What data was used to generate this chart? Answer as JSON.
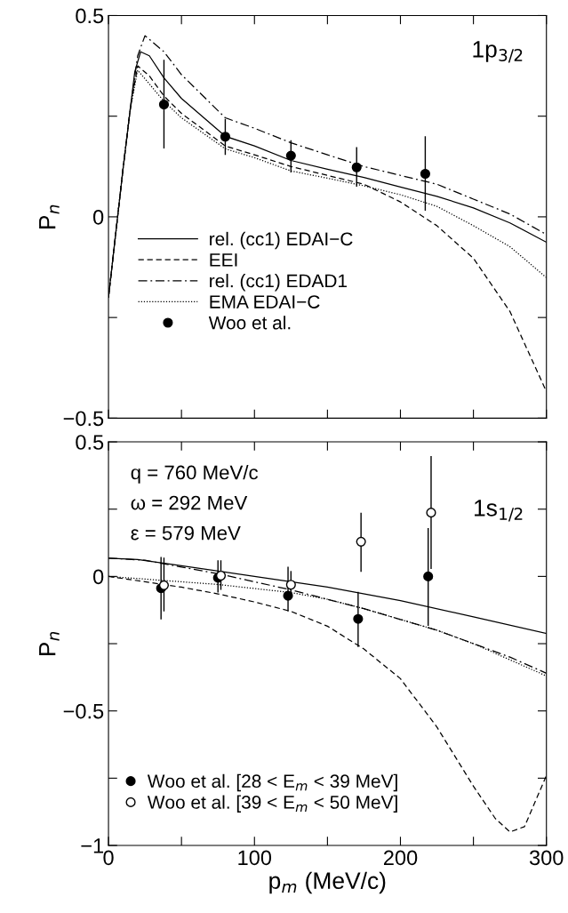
{
  "chart_data": [
    {
      "type": "line",
      "ylabel": "P$_{n}$",
      "xlim": [
        0,
        300
      ],
      "ylim": [
        -0.5,
        0.5
      ],
      "xticks": [
        0,
        {
          "value": 50,
          "label": null
        },
        100,
        {
          "value": 150,
          "label": null
        },
        200,
        {
          "value": 250,
          "label": null
        },
        300
      ],
      "yticks": [
        {
          "value": -0.5,
          "label": "−0.5"
        },
        {
          "value": -0.25,
          "label": null
        },
        0,
        {
          "value": 0.25,
          "label": null
        },
        0.5
      ],
      "tick_labels": "y",
      "grid": false,
      "legend": "bottom left",
      "annotations": [
        {
          "text": "1p$_{3/2}$"
        }
      ],
      "series": [
        {
          "name": "rel. (cc1) EDAI−C",
          "line_style": "solid",
          "color": "#000000",
          "x": [
            0,
            5,
            10,
            15,
            18,
            22,
            28,
            38,
            50,
            80,
            100,
            125,
            150,
            175,
            200,
            225,
            250,
            275,
            300
          ],
          "values": [
            -0.2,
            -0.04,
            0.12,
            0.27,
            0.36,
            0.41,
            0.4,
            0.345,
            0.294,
            0.2,
            0.176,
            0.14,
            0.118,
            0.098,
            0.074,
            0.051,
            0.022,
            -0.015,
            -0.063
          ]
        },
        {
          "name": "EEI",
          "line_style": "dashed",
          "color": "#000000",
          "x": [
            0,
            5,
            10,
            15,
            20,
            28,
            38,
            50,
            80,
            100,
            125,
            150,
            175,
            200,
            225,
            250,
            275,
            300
          ],
          "values": [
            -0.2,
            -0.04,
            0.12,
            0.27,
            0.375,
            0.35,
            0.3,
            0.257,
            0.176,
            0.154,
            0.125,
            0.103,
            0.081,
            0.037,
            -0.022,
            -0.103,
            -0.235,
            -0.434
          ]
        },
        {
          "name": "rel. (cc1) EDAD1",
          "line_style": "dashdot",
          "color": "#000000",
          "x": [
            0,
            5,
            10,
            15,
            20,
            25,
            38,
            50,
            80,
            100,
            125,
            150,
            175,
            200,
            225,
            250,
            275,
            300
          ],
          "values": [
            -0.2,
            -0.04,
            0.12,
            0.27,
            0.4,
            0.45,
            0.41,
            0.353,
            0.246,
            0.22,
            0.184,
            0.154,
            0.125,
            0.103,
            0.081,
            0.044,
            0.007,
            -0.044
          ]
        },
        {
          "name": "EMA EDAI−C",
          "line_style": "dotted",
          "color": "#000000",
          "x": [
            0,
            5,
            10,
            15,
            20,
            28,
            38,
            50,
            80,
            100,
            125,
            150,
            175,
            200,
            225,
            250,
            275,
            300
          ],
          "values": [
            -0.2,
            -0.04,
            0.12,
            0.27,
            0.364,
            0.33,
            0.287,
            0.246,
            0.169,
            0.147,
            0.114,
            0.096,
            0.077,
            0.055,
            0.026,
            -0.022,
            -0.074,
            -0.151
          ]
        },
        {
          "name": "Woo et al.",
          "type": "scatter",
          "marker": "circle",
          "color": "#000000",
          "x": [
            38,
            80,
            125,
            170,
            217
          ],
          "values": [
            0.279,
            0.199,
            0.152,
            0.123,
            0.107
          ],
          "errors": [
            [
              0.17,
              0.39
            ],
            [
              0.154,
              0.243
            ],
            [
              0.11,
              0.19
            ],
            [
              0.075,
              0.173
            ],
            [
              0.015,
              0.2
            ]
          ]
        }
      ]
    },
    {
      "type": "line",
      "ylabel": "P$_{n}$",
      "xlabel": "p$_{m}$ (MeV/c)",
      "xlim": [
        0,
        300
      ],
      "ylim": [
        -1,
        0.5
      ],
      "xticks": [
        0,
        {
          "value": 50,
          "label": null
        },
        100,
        {
          "value": 150,
          "label": null
        },
        200,
        {
          "value": 250,
          "label": null
        },
        300
      ],
      "yticks": [
        {
          "value": -1,
          "label": "−1"
        },
        {
          "value": -0.75,
          "label": null
        },
        {
          "value": -0.5,
          "label": "−0.5"
        },
        {
          "value": -0.25,
          "label": null
        },
        0,
        {
          "value": 0.25,
          "label": null
        },
        0.5
      ],
      "grid": false,
      "legend": "bottom left",
      "annotations": [
        {
          "text": "q = 760 MeV/c"
        },
        {
          "text": "ω = 292 MeV"
        },
        {
          "text": "ε = 579 MeV"
        },
        {
          "text": "1s$_{1/2}$"
        }
      ],
      "series": [
        {
          "line_style": "solid",
          "color": "#000000",
          "x": [
            0,
            20,
            50,
            100,
            150,
            200,
            250,
            300
          ],
          "values": [
            0.068,
            0.063,
            0.04,
            0.0,
            -0.04,
            -0.09,
            -0.15,
            -0.212
          ]
        },
        {
          "line_style": "dashed",
          "color": "#000000",
          "x": [
            0,
            25,
            50,
            75,
            100,
            125,
            150,
            175,
            200,
            225,
            250,
            265,
            275,
            285,
            300
          ],
          "values": [
            0,
            -0.02,
            -0.04,
            -0.065,
            -0.095,
            -0.13,
            -0.185,
            -0.27,
            -0.38,
            -0.56,
            -0.78,
            -0.9,
            -0.95,
            -0.93,
            -0.74
          ]
        },
        {
          "line_style": "dashdot",
          "color": "#000000",
          "x": [
            0,
            25,
            50,
            75,
            100,
            125,
            150,
            175,
            200,
            225,
            250,
            275,
            300
          ],
          "values": [
            0.068,
            0.06,
            0.035,
            0.01,
            -0.02,
            -0.05,
            -0.085,
            -0.12,
            -0.16,
            -0.2,
            -0.25,
            -0.3,
            -0.36
          ]
        },
        {
          "line_style": "dotted",
          "color": "#000000",
          "x": [
            0,
            25,
            50,
            75,
            100,
            125,
            150,
            175,
            200,
            225,
            250,
            275,
            300
          ],
          "values": [
            0,
            -0.01,
            -0.02,
            -0.03,
            -0.045,
            -0.06,
            -0.085,
            -0.12,
            -0.16,
            -0.2,
            -0.25,
            -0.31,
            -0.37
          ]
        },
        {
          "name": "Woo et al. [28 < E$_{m}$ < 39 MeV]",
          "type": "scatter",
          "marker": "circle",
          "color": "#000000",
          "x": [
            36,
            75,
            123,
            171,
            219
          ],
          "values": [
            -0.044,
            -0.005,
            -0.072,
            -0.158,
            0.0
          ],
          "errors": [
            [
              -0.16,
              0.072
            ],
            [
              -0.06,
              0.06
            ],
            [
              -0.13,
              0.036
            ],
            [
              -0.262,
              -0.057
            ],
            [
              -0.184,
              0.18
            ]
          ]
        },
        {
          "name": "Woo et al. [39 < E$_{m}$ < 50 MeV]",
          "type": "scatter",
          "marker": "circle",
          "color": "#ffffff",
          "x": [
            38,
            77,
            125,
            173,
            221
          ],
          "values": [
            -0.033,
            0.003,
            -0.031,
            0.129,
            0.237
          ],
          "errors": [
            [
              -0.13,
              0.07
            ],
            [
              -0.05,
              0.06
            ],
            [
              -0.08,
              0.02
            ],
            [
              0.017,
              0.237
            ],
            [
              0.028,
              0.447
            ]
          ]
        }
      ]
    }
  ]
}
